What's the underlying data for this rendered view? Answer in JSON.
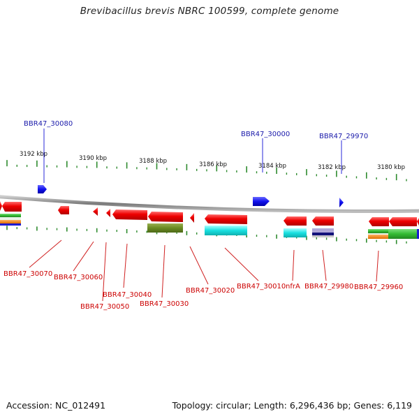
{
  "title": "Brevibacillus brevis NBRC 100599, complete genome",
  "footer": {
    "accession": "Accession: NC_012491",
    "summary": "Topology: circular; Length: 6,296,436 bp; Genes: 6,119"
  },
  "colors": {
    "backbone": "#888888",
    "forward_gene": "#1010ee",
    "reverse_gene": "#ee0000",
    "tick": "#2e8b2e",
    "blue_label": "#1a1aaa",
    "red_label": "#cc0000"
  },
  "scale_labels": [
    "3192 kbp",
    "3190 kbp",
    "3188 kbp",
    "3186 kbp",
    "3184 kbp",
    "3182 kbp",
    "3180 kbp"
  ],
  "forward_gene_labels": [
    "BBR47_30080",
    "BBR47_30000",
    "BBR47_29970"
  ],
  "reverse_gene_labels": [
    "BBR47_30070",
    "BBR47_30060",
    "BBR47_30050",
    "BBR47_30040",
    "BBR47_30030",
    "BBR47_30020",
    "BBR47_30010",
    "nfrA",
    "BBR47_29980",
    "BBR47_29960"
  ]
}
